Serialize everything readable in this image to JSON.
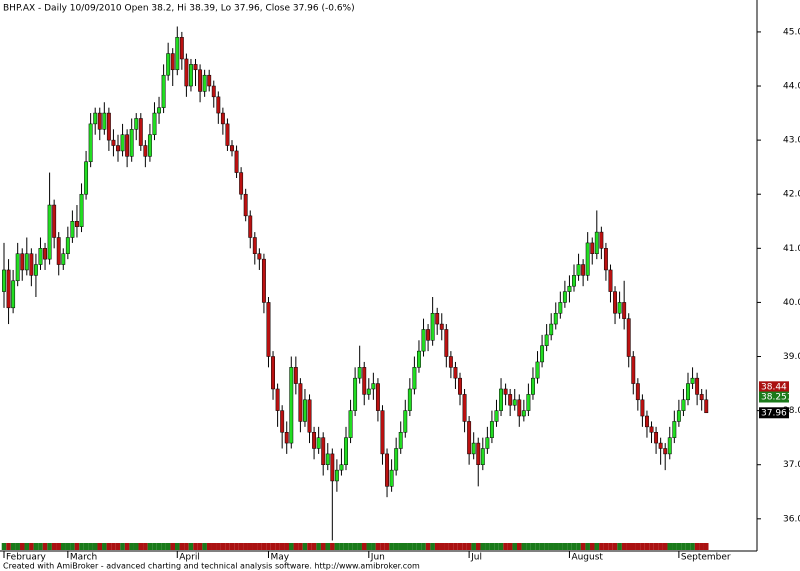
{
  "chart_data": {
    "type": "candlestick",
    "title": "BHP.AX - Daily 10/09/2010 Open 38.2, Hi 38.39, Lo 37.96, Close 37.96 (-0.6%)",
    "footer": "Created with AmiBroker - advanced charting and technical analysis software. http://www.amibroker.com",
    "categories": [
      "February",
      null,
      null,
      null,
      null,
      null,
      null,
      null,
      null,
      null,
      null,
      null,
      null,
      null,
      "March",
      null,
      null,
      null,
      null,
      null,
      null,
      null,
      null,
      null,
      null,
      null,
      null,
      null,
      null,
      null,
      null,
      null,
      null,
      null,
      null,
      null,
      null,
      null,
      "April",
      null,
      null,
      null,
      null,
      null,
      null,
      null,
      null,
      null,
      null,
      null,
      null,
      null,
      null,
      null,
      null,
      null,
      null,
      null,
      "May",
      null,
      null,
      null,
      null,
      null,
      null,
      null,
      null,
      null,
      null,
      null,
      null,
      null,
      null,
      null,
      null,
      null,
      null,
      null,
      null,
      null,
      "Jun",
      null,
      null,
      null,
      null,
      null,
      null,
      null,
      null,
      null,
      null,
      null,
      null,
      null,
      null,
      null,
      null,
      null,
      null,
      null,
      null,
      null,
      "Jul",
      null,
      null,
      null,
      null,
      null,
      null,
      null,
      null,
      null,
      null,
      null,
      null,
      null,
      null,
      null,
      null,
      null,
      null,
      null,
      null,
      null,
      "August",
      null,
      null,
      null,
      null,
      null,
      null,
      null,
      null,
      null,
      null,
      null,
      null,
      null,
      null,
      null,
      null,
      null,
      null,
      null,
      null,
      null,
      null,
      null,
      "September",
      null,
      null,
      null,
      null,
      null,
      null
    ],
    "open": [
      40.2,
      40.6,
      39.9,
      40.4,
      40.9,
      40.6,
      40.9,
      40.5,
      40.7,
      41.0,
      40.8,
      41.8,
      41.2,
      40.7,
      40.9,
      41.2,
      41.5,
      41.4,
      42.0,
      42.6,
      43.3,
      43.5,
      43.2,
      43.5,
      43.0,
      42.9,
      42.8,
      43.1,
      42.7,
      43.2,
      43.4,
      42.9,
      42.7,
      43.1,
      43.5,
      43.6,
      44.2,
      44.6,
      44.3,
      44.9,
      44.5,
      44.0,
      44.4,
      44.3,
      43.9,
      44.2,
      44.0,
      43.8,
      43.5,
      43.3,
      42.9,
      42.8,
      42.4,
      42.0,
      41.6,
      41.2,
      40.9,
      40.8,
      40.0,
      39.0,
      38.4,
      38.0,
      37.6,
      37.4,
      38.8,
      38.5,
      37.8,
      38.2,
      37.6,
      37.3,
      37.5,
      37.0,
      37.2,
      36.7,
      36.9,
      37.0,
      37.5,
      38.0,
      38.6,
      38.8,
      38.3,
      38.4,
      38.5,
      38.0,
      37.2,
      36.6,
      36.9,
      37.3,
      37.6,
      38.0,
      38.4,
      38.8,
      39.1,
      39.5,
      39.3,
      39.8,
      39.6,
      39.5,
      39.0,
      38.8,
      38.6,
      38.3,
      37.8,
      37.2,
      37.4,
      37.0,
      37.3,
      37.5,
      37.8,
      38.0,
      38.4,
      38.3,
      38.1,
      38.2,
      37.9,
      38.0,
      38.3,
      38.6,
      38.9,
      39.2,
      39.4,
      39.6,
      39.8,
      40.0,
      40.2,
      40.3,
      40.5,
      40.7,
      40.5,
      41.1,
      40.9,
      41.3,
      41.0,
      40.6,
      40.2,
      39.8,
      40.0,
      39.7,
      39.0,
      38.5,
      38.2,
      37.9,
      37.7,
      37.6,
      37.4,
      37.3,
      37.2,
      37.5,
      37.8,
      38.0,
      38.2,
      38.5,
      38.6,
      38.3,
      38.2
    ],
    "high": [
      41.1,
      40.8,
      40.6,
      41.1,
      41.0,
      41.2,
      41.0,
      40.9,
      41.2,
      41.1,
      42.4,
      41.9,
      41.3,
      41.0,
      41.4,
      41.7,
      41.8,
      42.2,
      42.8,
      43.5,
      43.6,
      43.6,
      43.7,
      43.6,
      43.2,
      43.1,
      43.3,
      43.2,
      43.4,
      43.5,
      43.5,
      43.0,
      43.3,
      43.7,
      43.8,
      44.4,
      44.8,
      44.7,
      45.1,
      45.0,
      44.6,
      44.5,
      44.5,
      44.4,
      44.3,
      44.3,
      44.1,
      43.9,
      43.6,
      43.4,
      43.0,
      42.9,
      42.5,
      42.1,
      41.7,
      41.3,
      41.0,
      40.9,
      40.1,
      39.1,
      38.5,
      38.1,
      37.8,
      39.0,
      39.0,
      38.6,
      38.4,
      38.3,
      37.7,
      37.7,
      37.6,
      37.4,
      37.3,
      37.1,
      37.3,
      37.7,
      38.2,
      38.8,
      39.2,
      38.9,
      38.6,
      38.7,
      38.6,
      38.1,
      37.3,
      37.1,
      37.5,
      37.8,
      38.2,
      38.6,
      39.0,
      39.3,
      39.7,
      39.6,
      40.1,
      39.9,
      39.8,
      39.6,
      39.1,
      38.9,
      38.7,
      38.4,
      37.9,
      37.6,
      37.5,
      37.5,
      37.7,
      38.0,
      38.2,
      38.6,
      38.5,
      38.4,
      38.4,
      38.3,
      38.2,
      38.5,
      38.8,
      39.1,
      39.4,
      39.6,
      39.8,
      40.0,
      40.2,
      40.4,
      40.5,
      40.7,
      40.9,
      40.8,
      41.3,
      41.2,
      41.7,
      41.4,
      41.1,
      40.7,
      40.3,
      40.2,
      40.4,
      39.8,
      39.1,
      38.6,
      38.3,
      38.0,
      37.8,
      37.7,
      37.5,
      37.4,
      37.7,
      38.0,
      38.2,
      38.4,
      38.7,
      38.8,
      38.7,
      38.4,
      38.39
    ],
    "low": [
      39.9,
      39.6,
      39.8,
      40.3,
      40.4,
      40.5,
      40.3,
      40.1,
      40.6,
      40.6,
      40.7,
      41.0,
      40.5,
      40.6,
      40.8,
      41.1,
      41.2,
      41.3,
      41.9,
      42.5,
      43.1,
      43.0,
      43.1,
      42.8,
      42.7,
      42.6,
      42.7,
      42.5,
      42.6,
      43.0,
      42.8,
      42.5,
      42.6,
      43.0,
      43.3,
      43.5,
      44.1,
      44.0,
      44.2,
      44.3,
      43.8,
      43.9,
      44.0,
      43.7,
      43.8,
      43.9,
      43.6,
      43.3,
      43.1,
      42.8,
      42.7,
      42.3,
      41.9,
      41.5,
      41.0,
      40.7,
      40.6,
      39.8,
      38.8,
      38.2,
      37.7,
      37.3,
      37.2,
      37.3,
      38.3,
      37.6,
      37.7,
      37.4,
      37.1,
      37.2,
      36.8,
      36.9,
      35.6,
      36.5,
      36.8,
      36.9,
      37.4,
      37.9,
      38.5,
      38.1,
      38.2,
      38.2,
      37.8,
      37.0,
      36.4,
      36.5,
      36.8,
      37.2,
      37.5,
      37.9,
      38.3,
      38.7,
      39.0,
      39.1,
      39.2,
      39.4,
      39.3,
      38.8,
      38.6,
      38.4,
      38.1,
      37.6,
      37.0,
      37.1,
      36.6,
      36.9,
      37.2,
      37.4,
      37.7,
      37.9,
      38.1,
      37.9,
      38.0,
      37.7,
      37.8,
      37.9,
      38.2,
      38.5,
      38.8,
      39.1,
      39.3,
      39.5,
      39.7,
      39.9,
      40.0,
      40.2,
      40.4,
      40.3,
      40.4,
      40.7,
      40.8,
      40.8,
      40.4,
      40.0,
      39.6,
      39.7,
      39.5,
      38.8,
      38.3,
      38.0,
      37.7,
      37.5,
      37.4,
      37.2,
      37.0,
      36.9,
      37.1,
      37.4,
      37.7,
      37.9,
      38.1,
      38.4,
      38.1,
      38.0,
      37.96
    ],
    "close": [
      40.6,
      39.9,
      40.4,
      40.9,
      40.6,
      40.9,
      40.5,
      40.7,
      41.0,
      40.8,
      41.8,
      41.2,
      40.7,
      40.9,
      41.2,
      41.5,
      41.4,
      42.0,
      42.6,
      43.3,
      43.5,
      43.2,
      43.5,
      43.0,
      42.9,
      42.8,
      43.1,
      42.7,
      43.2,
      43.4,
      42.9,
      42.7,
      43.1,
      43.5,
      43.6,
      44.2,
      44.6,
      44.3,
      44.9,
      44.5,
      44.0,
      44.4,
      44.3,
      43.9,
      44.2,
      44.0,
      43.8,
      43.5,
      43.3,
      42.9,
      42.8,
      42.4,
      42.0,
      41.6,
      41.2,
      40.9,
      40.8,
      40.0,
      39.0,
      38.4,
      38.0,
      37.6,
      37.4,
      38.8,
      38.5,
      37.8,
      38.2,
      37.6,
      37.3,
      37.5,
      37.0,
      37.2,
      36.7,
      36.9,
      37.0,
      37.5,
      38.0,
      38.6,
      38.8,
      38.3,
      38.4,
      38.5,
      38.0,
      37.2,
      36.6,
      36.9,
      37.3,
      37.6,
      38.0,
      38.4,
      38.8,
      39.1,
      39.5,
      39.3,
      39.8,
      39.6,
      39.5,
      39.0,
      38.8,
      38.6,
      38.3,
      37.8,
      37.2,
      37.4,
      37.0,
      37.3,
      37.5,
      37.8,
      38.0,
      38.4,
      38.3,
      38.1,
      38.2,
      37.9,
      38.0,
      38.3,
      38.6,
      38.9,
      39.2,
      39.4,
      39.6,
      39.8,
      40.0,
      40.2,
      40.3,
      40.5,
      40.7,
      40.5,
      41.1,
      40.9,
      41.3,
      41.0,
      40.6,
      40.2,
      39.8,
      40.0,
      39.7,
      39.0,
      38.5,
      38.2,
      37.9,
      37.7,
      37.6,
      37.4,
      37.3,
      37.2,
      37.5,
      37.8,
      38.0,
      38.2,
      38.5,
      38.6,
      38.3,
      38.2,
      37.96
    ],
    "up_color": "#22dd22",
    "down_color": "#bb1111",
    "ylim": [
      35.59,
      45.59
    ],
    "yticks": [
      {
        "value": 36,
        "label": "36.0"
      },
      {
        "value": 37,
        "label": "37.0"
      },
      {
        "value": 38,
        "label": "38.0"
      },
      {
        "value": 39,
        "label": "39.0"
      },
      {
        "value": 40,
        "label": "40.0"
      },
      {
        "value": 41,
        "label": "41.0"
      },
      {
        "value": 42,
        "label": "42.0"
      },
      {
        "value": 43,
        "label": "43.0"
      },
      {
        "value": 44,
        "label": "44.0"
      },
      {
        "value": 45,
        "label": "45.0"
      }
    ],
    "price_labels": [
      {
        "value": 38.44,
        "color": "#aa1111"
      },
      {
        "value": 38.2517,
        "color": "#1a7a1a"
      },
      {
        "value": 37.96,
        "color": "#000000"
      }
    ]
  }
}
